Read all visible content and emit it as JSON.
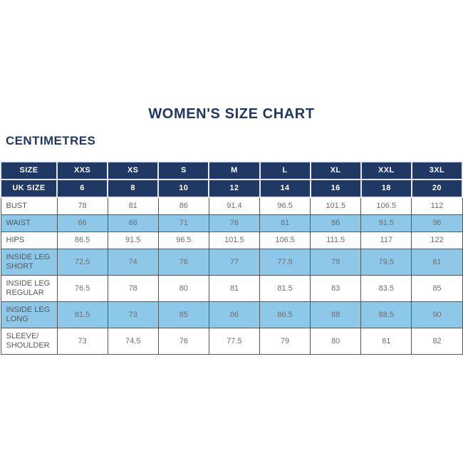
{
  "page": {
    "title": "WOMEN'S SIZE CHART",
    "unit_label": "CENTIMETRES"
  },
  "colors": {
    "navy": "#1f3864",
    "header_text": "#ffffff",
    "row_highlight": "#8dc8e8",
    "row_plain": "#ffffff",
    "label_text": "#55565a",
    "value_text": "#6d6e71",
    "grid_border": "#55565a",
    "header_divider": "#e6e8ec"
  },
  "chart_data": {
    "type": "table",
    "title": "WOMEN'S SIZE CHART",
    "unit": "CENTIMETRES",
    "header_rows": [
      {
        "label": "SIZE",
        "values": [
          "XXS",
          "XS",
          "S",
          "M",
          "L",
          "XL",
          "XXL",
          "3XL"
        ]
      },
      {
        "label": "UK SIZE",
        "values": [
          "6",
          "8",
          "10",
          "12",
          "14",
          "16",
          "18",
          "20"
        ]
      }
    ],
    "rows": [
      {
        "label": "BUST",
        "highlight": false,
        "values": [
          "78",
          "81",
          "86",
          "91.4",
          "96.5",
          "101.5",
          "106.5",
          "112"
        ]
      },
      {
        "label": "WAIST",
        "highlight": true,
        "values": [
          "66",
          "68",
          "71",
          "76",
          "81",
          "86",
          "91.5",
          "96"
        ]
      },
      {
        "label": "HIPS",
        "highlight": false,
        "values": [
          "86.5",
          "91.5",
          "96.5",
          "101.5",
          "106.5",
          "111.5",
          "117",
          "122"
        ]
      },
      {
        "label": "INSIDE LEG SHORT",
        "highlight": true,
        "values": [
          "72.5",
          "74",
          "76",
          "77",
          "77.5",
          "79",
          "79.5",
          "81"
        ]
      },
      {
        "label": "INSIDE LEG REGULAR",
        "highlight": false,
        "values": [
          "76.5",
          "78",
          "80",
          "81",
          "81.5",
          "83",
          "83.5",
          "85"
        ]
      },
      {
        "label": "INSIDE LEG LONG",
        "highlight": true,
        "values": [
          "81.5",
          "73",
          "85",
          "86",
          "86.5",
          "88",
          "88.5",
          "90"
        ]
      },
      {
        "label": "SLEEVE/ SHOULDER",
        "highlight": false,
        "values": [
          "73",
          "74.5",
          "76",
          "77.5",
          "79",
          "80",
          "81",
          "82"
        ]
      }
    ]
  }
}
